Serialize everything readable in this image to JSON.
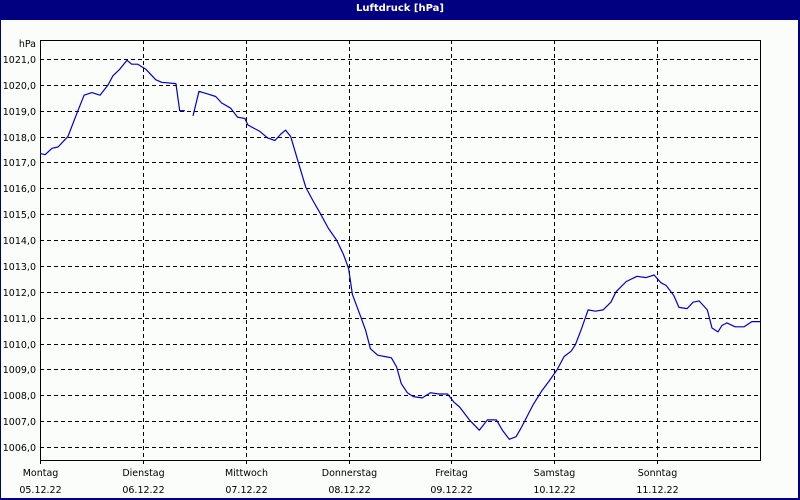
{
  "window": {
    "title": "Luftdruck [hPa]"
  },
  "colors": {
    "frame": "#000080",
    "background": "#fbfdfb",
    "grid": "#000000",
    "line": "#0000cc"
  },
  "chart_data": {
    "type": "line",
    "title": "Luftdruck [hPa]",
    "xlabel": "",
    "ylabel": "hPa",
    "unit": "hPa",
    "ylim": [
      1005.5,
      1022.0
    ],
    "yticks": [
      1006.0,
      1007.0,
      1008.0,
      1009.0,
      1010.0,
      1011.0,
      1012.0,
      1013.0,
      1014.0,
      1015.0,
      1016.0,
      1017.0,
      1018.0,
      1019.0,
      1020.0,
      1021.0
    ],
    "ytick_labels": [
      "1006,0",
      "1007,0",
      "1008,0",
      "1009,0",
      "1010,0",
      "1011,0",
      "1012,0",
      "1013,0",
      "1014,0",
      "1015,0",
      "1016,0",
      "1017,0",
      "1018,0",
      "1019,0",
      "1020,0",
      "1021,0"
    ],
    "xlim_hours": [
      0,
      168
    ],
    "x_categories": [
      {
        "day": "Montag",
        "date": "05.12.22",
        "hour": 0
      },
      {
        "day": "Dienstag",
        "date": "06.12.22",
        "hour": 24
      },
      {
        "day": "Mittwoch",
        "date": "07.12.22",
        "hour": 48
      },
      {
        "day": "Donnerstag",
        "date": "08.12.22",
        "hour": 72
      },
      {
        "day": "Freitag",
        "date": "09.12.22",
        "hour": 96
      },
      {
        "day": "Samstag",
        "date": "10.12.22",
        "hour": 120
      },
      {
        "day": "Sonntag",
        "date": "11.12.22",
        "hour": 144
      }
    ],
    "grid": true,
    "legend": "none",
    "series": [
      {
        "name": "Luftdruck",
        "segments": [
          {
            "hours": [
              0.0,
              1.2,
              2.8,
              4.2,
              6.5,
              8.6,
              10.3,
              12.1,
              14.0,
              15.9,
              17.0,
              18.6,
              20.3,
              21.4,
              22.8,
              24.7,
              27.0,
              28.4,
              31.7,
              32.6,
              33.8
            ],
            "values": [
              1017.35,
              1017.3,
              1017.55,
              1017.6,
              1018.0,
              1018.9,
              1019.6,
              1019.7,
              1019.6,
              1020.0,
              1020.35,
              1020.6,
              1020.95,
              1020.8,
              1020.8,
              1020.6,
              1020.2,
              1020.1,
              1020.05,
              1019.0,
              1019.0
            ]
          },
          {
            "hours": [
              35.7,
              37.1,
              39.1,
              41.0,
              42.4,
              44.5,
              46.1,
              47.8,
              48.5,
              51.3,
              53.1,
              54.8,
              56.2,
              57.3,
              58.5,
              60.1,
              62.0,
              63.6,
              65.5,
              67.3,
              69.2,
              70.8,
              72.0,
              72.9,
              74.8,
              76.0,
              77.1,
              78.8,
              80.4,
              82.0,
              83.2,
              84.3,
              85.7,
              87.1,
              89.2,
              91.1,
              93.0,
              95.1,
              96.5,
              97.9,
              100.2,
              102.5,
              104.4,
              106.5,
              107.9,
              109.5,
              111.1,
              112.3,
              113.7,
              115.1,
              117.0,
              118.8,
              120.7,
              122.3,
              123.9,
              124.9,
              126.3,
              127.9,
              129.6,
              131.4,
              133.2,
              134.4,
              136.8,
              139.3,
              141.4,
              143.3,
              144.9,
              146.1,
              147.9,
              149.1,
              151.0,
              152.4,
              153.8,
              155.7,
              156.8,
              158.2,
              159.1,
              160.3,
              162.2,
              164.3,
              166.1,
              168.0
            ],
            "values": [
              1018.8,
              1019.75,
              1019.65,
              1019.55,
              1019.3,
              1019.1,
              1018.75,
              1018.7,
              1018.45,
              1018.2,
              1017.95,
              1017.85,
              1018.1,
              1018.25,
              1018.0,
              1017.1,
              1016.05,
              1015.55,
              1015.0,
              1014.45,
              1014.0,
              1013.45,
              1012.9,
              1011.9,
              1011.05,
              1010.5,
              1009.8,
              1009.55,
              1009.5,
              1009.45,
              1009.1,
              1008.45,
              1008.1,
              1007.95,
              1007.9,
              1008.1,
              1008.05,
              1008.05,
              1007.75,
              1007.55,
              1007.05,
              1006.65,
              1007.05,
              1007.05,
              1006.65,
              1006.3,
              1006.4,
              1006.75,
              1007.2,
              1007.65,
              1008.15,
              1008.55,
              1009.0,
              1009.5,
              1009.7,
              1009.95,
              1010.55,
              1011.3,
              1011.25,
              1011.3,
              1011.6,
              1012.0,
              1012.4,
              1012.6,
              1012.55,
              1012.65,
              1012.35,
              1012.25,
              1011.85,
              1011.4,
              1011.35,
              1011.6,
              1011.65,
              1011.3,
              1010.6,
              1010.45,
              1010.7,
              1010.8,
              1010.65,
              1010.65,
              1010.85,
              1010.85
            ]
          }
        ]
      }
    ]
  }
}
